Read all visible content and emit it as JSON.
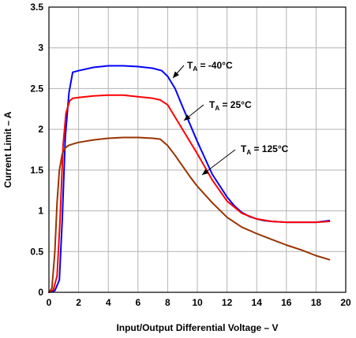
{
  "chart_data": {
    "type": "line",
    "title": "",
    "xlabel": "Input/Output Differential Voltage – V",
    "ylabel": "Current Limit – A",
    "xlim": [
      0,
      20
    ],
    "ylim": [
      0,
      3.5
    ],
    "xticks": [
      "0",
      "2",
      "4",
      "6",
      "8",
      "10",
      "12",
      "14",
      "16",
      "18",
      "20"
    ],
    "yticks": [
      "0",
      "0.5",
      "1",
      "1.5",
      "2",
      "2.5",
      "3",
      "3.5"
    ],
    "grid": true,
    "legend": "none",
    "series": [
      {
        "name": "TA = -40°C",
        "label_main": "T",
        "label_sub": "A",
        "label_rest": " = -40°C",
        "color": "#0000ff",
        "x": [
          0,
          0.4,
          0.7,
          0.9,
          1.1,
          1.35,
          1.6,
          2.0,
          3.0,
          4.0,
          5.0,
          6.0,
          7.0,
          7.6,
          8.0,
          8.5,
          9.0,
          10.0,
          11.0,
          12.0,
          12.5,
          13.0,
          13.5,
          14.0,
          14.5,
          15.0,
          16.0,
          17.0,
          18.0,
          18.9
        ],
        "y": [
          0,
          0.02,
          0.15,
          0.9,
          1.9,
          2.45,
          2.7,
          2.72,
          2.76,
          2.78,
          2.78,
          2.77,
          2.75,
          2.72,
          2.65,
          2.5,
          2.28,
          1.85,
          1.45,
          1.17,
          1.06,
          0.98,
          0.93,
          0.9,
          0.88,
          0.87,
          0.86,
          0.86,
          0.86,
          0.88
        ]
      },
      {
        "name": "TA = 25°C",
        "label_main": "T",
        "label_sub": "A",
        "label_rest": " = 25°C",
        "color": "#ff0000",
        "x": [
          0,
          0.3,
          0.55,
          0.75,
          0.95,
          1.15,
          1.4,
          1.6,
          2.0,
          3.0,
          4.0,
          5.0,
          6.0,
          7.0,
          7.5,
          8.0,
          8.5,
          9.0,
          10.0,
          11.0,
          12.0,
          13.0,
          14.0,
          15.0,
          16.0,
          17.0,
          18.0,
          18.9
        ],
        "y": [
          0,
          0.03,
          0.2,
          0.9,
          1.8,
          2.2,
          2.35,
          2.38,
          2.39,
          2.41,
          2.42,
          2.42,
          2.4,
          2.38,
          2.36,
          2.3,
          2.15,
          2.0,
          1.7,
          1.38,
          1.12,
          0.97,
          0.9,
          0.87,
          0.86,
          0.86,
          0.86,
          0.87
        ]
      },
      {
        "name": "TA = 125°C",
        "label_main": "T",
        "label_sub": "A",
        "label_rest": " = 125°C",
        "color": "#993300",
        "x": [
          0,
          0.2,
          0.4,
          0.55,
          0.7,
          0.9,
          1.1,
          1.3,
          1.6,
          2.0,
          3.0,
          4.0,
          5.0,
          6.0,
          7.0,
          7.5,
          8.0,
          8.5,
          9.0,
          9.5,
          10.0,
          11.0,
          12.0,
          13.0,
          14.0,
          15.0,
          16.0,
          17.0,
          18.0,
          18.9
        ],
        "y": [
          0,
          0.05,
          0.5,
          1.1,
          1.5,
          1.7,
          1.77,
          1.8,
          1.82,
          1.84,
          1.87,
          1.89,
          1.9,
          1.9,
          1.89,
          1.88,
          1.8,
          1.68,
          1.55,
          1.42,
          1.3,
          1.1,
          0.92,
          0.8,
          0.72,
          0.65,
          0.58,
          0.52,
          0.45,
          0.4
        ]
      }
    ]
  }
}
